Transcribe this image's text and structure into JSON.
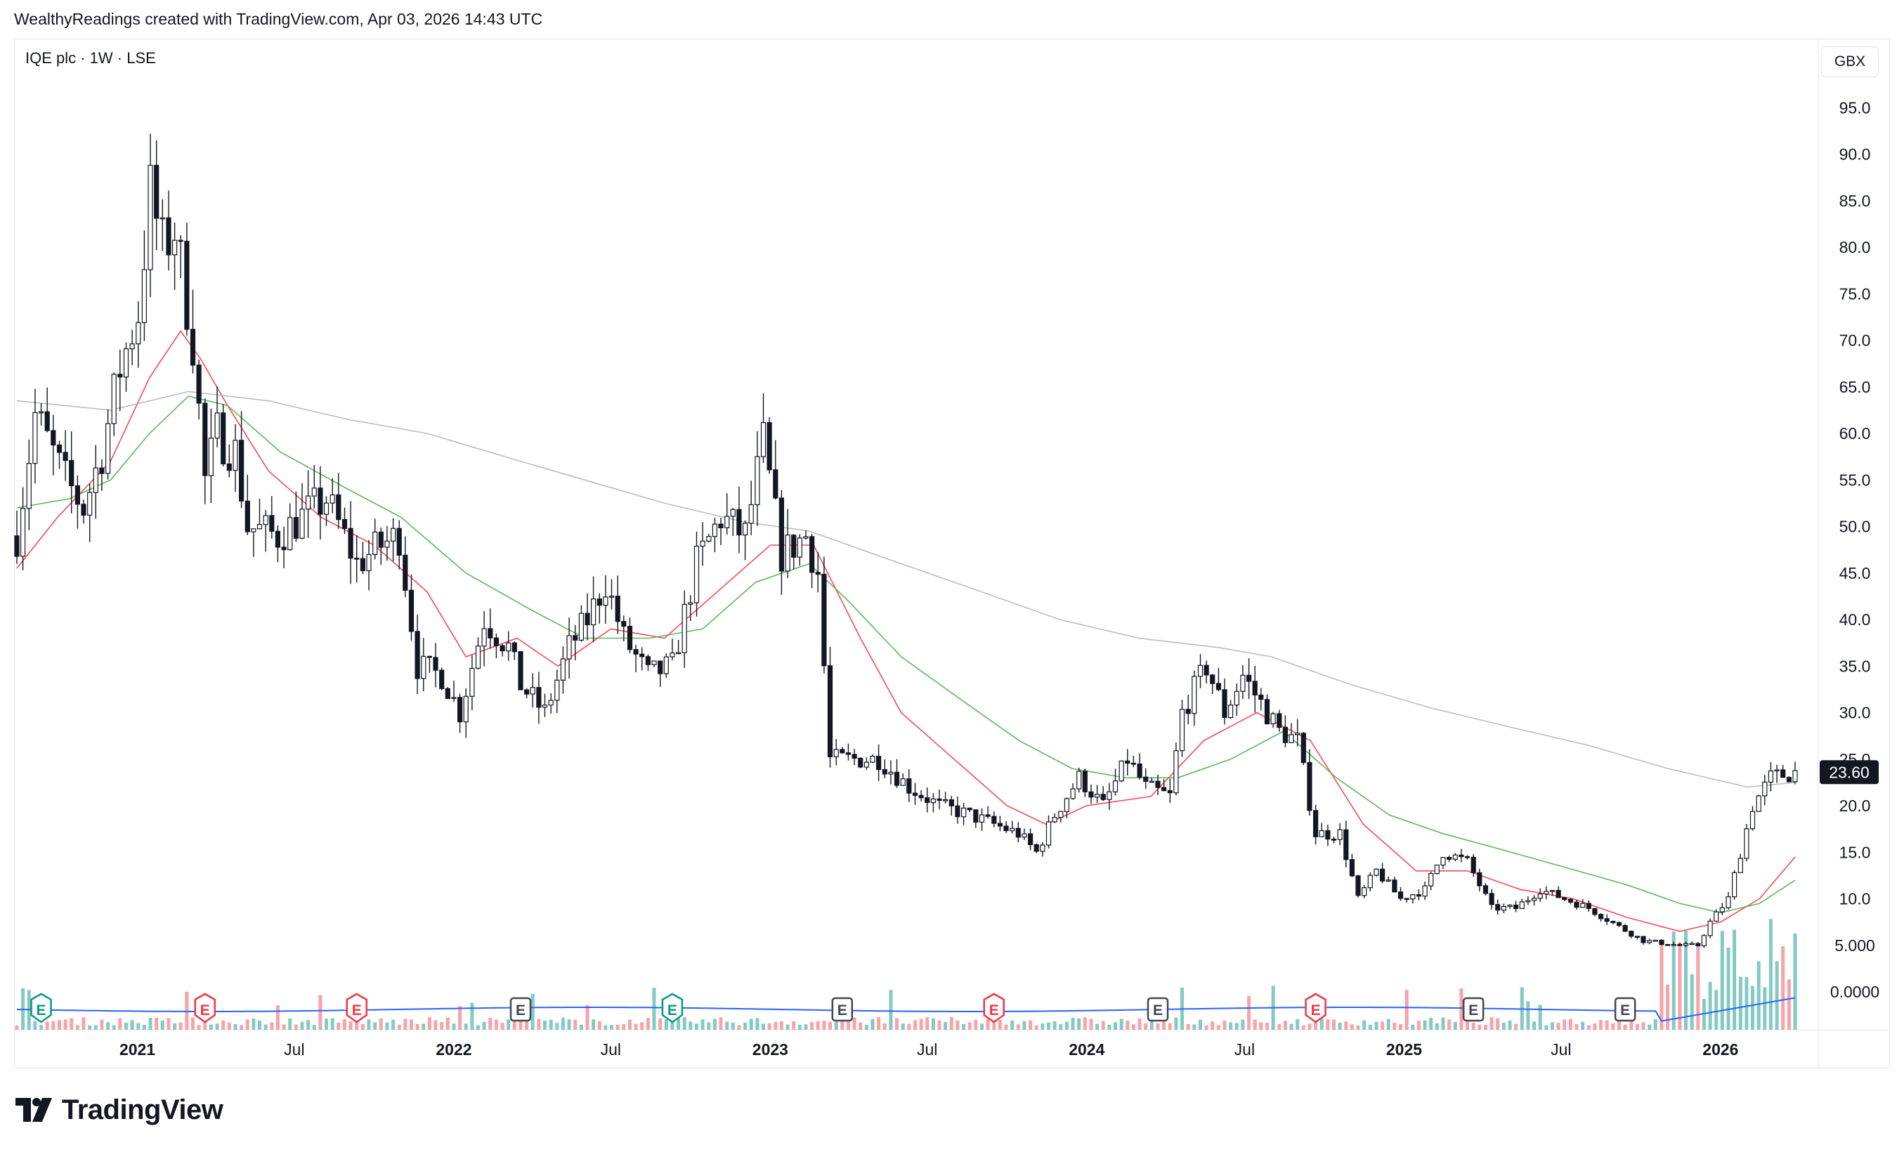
{
  "header": {
    "credit": "WealthyReadings created with TradingView.com, Apr 03, 2026 14:43 UTC"
  },
  "symbol": {
    "title": "IQE plc · 1W · LSE"
  },
  "currency": {
    "label": "GBX"
  },
  "branding": {
    "logo_text": "TradingView"
  },
  "colors": {
    "candle_body": "#131722",
    "ma_fast": "#f23645",
    "ma_mid": "#4caf50",
    "ma_slow": "#b2b5be",
    "volume_up": "#84cac3",
    "volume_down": "#f7a3a8",
    "volume_ma": "#2962ff",
    "earnings_green": "#089981",
    "earnings_red": "#f23645",
    "earnings_gray": "#434651"
  },
  "chart_data": {
    "type": "candlestick",
    "price_axis": {
      "ticks": [
        "95.0",
        "90.0",
        "85.0",
        "80.0",
        "75.0",
        "70.0",
        "65.0",
        "60.0",
        "55.0",
        "50.0",
        "45.0",
        "40.0",
        "35.0",
        "30.0",
        "25.0",
        "20.0",
        "15.0",
        "10.0",
        "5.000",
        "0.0000"
      ],
      "range": [
        0,
        95
      ],
      "unit": "GBX"
    },
    "time_axis": {
      "labels": [
        "2021",
        "Jul",
        "2022",
        "Jul",
        "2023",
        "Jul",
        "2024",
        "Jul",
        "2025",
        "Jul",
        "2026"
      ]
    },
    "last_price_label": "23.60",
    "anchors": [
      {
        "date": "2020-08-15",
        "close": 49
      },
      {
        "date": "2020-09-05",
        "close": 62
      },
      {
        "date": "2020-10-10",
        "close": 55
      },
      {
        "date": "2020-10-31",
        "close": 52
      },
      {
        "date": "2020-11-21",
        "close": 58
      },
      {
        "date": "2020-12-12",
        "close": 67
      },
      {
        "date": "2021-01-02",
        "close": 73
      },
      {
        "date": "2021-01-16",
        "close": 86
      },
      {
        "date": "2021-01-30",
        "close": 80
      },
      {
        "date": "2021-02-13",
        "close": 82
      },
      {
        "date": "2021-03-06",
        "close": 70
      },
      {
        "date": "2021-03-20",
        "close": 55
      },
      {
        "date": "2021-04-03",
        "close": 60
      },
      {
        "date": "2021-04-24",
        "close": 58
      },
      {
        "date": "2021-05-08",
        "close": 50
      },
      {
        "date": "2021-06-12",
        "close": 49
      },
      {
        "date": "2021-07-10",
        "close": 51
      },
      {
        "date": "2021-08-07",
        "close": 53
      },
      {
        "date": "2021-09-11",
        "close": 46
      },
      {
        "date": "2021-10-09",
        "close": 48
      },
      {
        "date": "2021-10-30",
        "close": 49
      },
      {
        "date": "2021-11-20",
        "close": 35
      },
      {
        "date": "2021-12-18",
        "close": 34
      },
      {
        "date": "2022-01-08",
        "close": 30
      },
      {
        "date": "2022-02-05",
        "close": 40
      },
      {
        "date": "2022-03-05",
        "close": 37
      },
      {
        "date": "2022-03-19",
        "close": 33
      },
      {
        "date": "2022-04-16",
        "close": 30
      },
      {
        "date": "2022-05-14",
        "close": 37
      },
      {
        "date": "2022-06-04",
        "close": 40
      },
      {
        "date": "2022-06-25",
        "close": 44
      },
      {
        "date": "2022-07-16",
        "close": 38
      },
      {
        "date": "2022-08-13",
        "close": 34
      },
      {
        "date": "2022-09-10",
        "close": 35
      },
      {
        "date": "2022-10-08",
        "close": 46
      },
      {
        "date": "2022-11-05",
        "close": 51
      },
      {
        "date": "2022-12-03",
        "close": 49
      },
      {
        "date": "2022-12-24",
        "close": 59
      },
      {
        "date": "2023-01-14",
        "close": 47
      },
      {
        "date": "2023-02-11",
        "close": 49
      },
      {
        "date": "2023-02-25",
        "close": 45
      },
      {
        "date": "2023-03-11",
        "close": 25
      },
      {
        "date": "2023-04-08",
        "close": 25
      },
      {
        "date": "2023-05-06",
        "close": 25
      },
      {
        "date": "2023-06-10",
        "close": 22
      },
      {
        "date": "2023-07-15",
        "close": 20
      },
      {
        "date": "2023-08-19",
        "close": 19
      },
      {
        "date": "2023-09-16",
        "close": 18
      },
      {
        "date": "2023-10-14",
        "close": 17
      },
      {
        "date": "2023-11-04",
        "close": 15
      },
      {
        "date": "2023-11-25",
        "close": 19
      },
      {
        "date": "2023-12-23",
        "close": 23
      },
      {
        "date": "2024-01-20",
        "close": 20
      },
      {
        "date": "2024-02-17",
        "close": 25
      },
      {
        "date": "2024-03-09",
        "close": 22
      },
      {
        "date": "2024-04-06",
        "close": 21
      },
      {
        "date": "2024-04-20",
        "close": 30
      },
      {
        "date": "2024-05-18",
        "close": 35
      },
      {
        "date": "2024-06-08",
        "close": 30
      },
      {
        "date": "2024-06-29",
        "close": 34
      },
      {
        "date": "2024-07-20",
        "close": 31
      },
      {
        "date": "2024-08-10",
        "close": 28
      },
      {
        "date": "2024-08-31",
        "close": 27
      },
      {
        "date": "2024-09-21",
        "close": 17
      },
      {
        "date": "2024-10-19",
        "close": 17
      },
      {
        "date": "2024-11-09",
        "close": 10
      },
      {
        "date": "2024-11-30",
        "close": 13
      },
      {
        "date": "2024-12-28",
        "close": 10
      },
      {
        "date": "2025-01-25",
        "close": 11
      },
      {
        "date": "2025-02-15",
        "close": 15
      },
      {
        "date": "2025-03-15",
        "close": 14
      },
      {
        "date": "2025-04-12",
        "close": 9
      },
      {
        "date": "2025-05-10",
        "close": 9
      },
      {
        "date": "2025-06-07",
        "close": 11
      },
      {
        "date": "2025-07-05",
        "close": 10
      },
      {
        "date": "2025-08-02",
        "close": 9
      },
      {
        "date": "2025-09-06",
        "close": 7
      },
      {
        "date": "2025-10-04",
        "close": 5.5
      },
      {
        "date": "2025-11-15",
        "close": 5
      },
      {
        "date": "2025-12-06",
        "close": 5
      },
      {
        "date": "2025-12-20",
        "close": 7.5
      },
      {
        "date": "2026-01-10",
        "close": 10
      },
      {
        "date": "2026-02-07",
        "close": 20
      },
      {
        "date": "2026-02-28",
        "close": 23
      },
      {
        "date": "2026-03-28",
        "close": 23.6
      }
    ],
    "series": [
      {
        "name": "",
        "type": "ma",
        "points": [
          [
            "2020-08-15",
            45.5
          ],
          [
            "2020-10-01",
            51
          ],
          [
            "2020-12-01",
            57
          ],
          [
            "2021-01-15",
            66
          ],
          [
            "2021-02-20",
            71
          ],
          [
            "2021-03-15",
            68
          ],
          [
            "2021-04-15",
            63
          ],
          [
            "2021-06-01",
            56
          ],
          [
            "2021-08-01",
            51
          ],
          [
            "2021-10-01",
            48
          ],
          [
            "2021-12-01",
            43
          ],
          [
            "2022-01-15",
            36
          ],
          [
            "2022-03-15",
            38
          ],
          [
            "2022-05-01",
            35
          ],
          [
            "2022-07-01",
            39
          ],
          [
            "2022-09-01",
            38
          ],
          [
            "2022-11-01",
            43
          ],
          [
            "2023-01-01",
            48
          ],
          [
            "2023-02-20",
            48
          ],
          [
            "2023-04-15",
            38
          ],
          [
            "2023-06-01",
            30
          ],
          [
            "2023-08-01",
            25
          ],
          [
            "2023-10-01",
            20
          ],
          [
            "2023-11-15",
            18
          ],
          [
            "2024-01-01",
            20
          ],
          [
            "2024-03-15",
            21
          ],
          [
            "2024-05-15",
            27
          ],
          [
            "2024-07-15",
            30
          ],
          [
            "2024-09-15",
            27
          ],
          [
            "2024-11-15",
            18
          ],
          [
            "2025-01-15",
            13
          ],
          [
            "2025-03-15",
            13
          ],
          [
            "2025-05-15",
            11
          ],
          [
            "2025-07-15",
            10
          ],
          [
            "2025-09-15",
            8
          ],
          [
            "2025-11-15",
            6.5
          ],
          [
            "2026-01-01",
            7.5
          ],
          [
            "2026-02-15",
            10
          ],
          [
            "2026-03-28",
            14.5
          ]
        ]
      },
      {
        "name": "",
        "type": "ma",
        "points": [
          [
            "2020-08-15",
            52
          ],
          [
            "2020-10-15",
            53
          ],
          [
            "2020-12-01",
            55
          ],
          [
            "2021-01-15",
            60
          ],
          [
            "2021-03-01",
            64
          ],
          [
            "2021-04-15",
            63
          ],
          [
            "2021-06-15",
            58
          ],
          [
            "2021-09-01",
            54
          ],
          [
            "2021-11-01",
            51
          ],
          [
            "2022-01-15",
            45
          ],
          [
            "2022-04-01",
            41
          ],
          [
            "2022-06-01",
            38
          ],
          [
            "2022-08-15",
            38
          ],
          [
            "2022-10-15",
            39
          ],
          [
            "2022-12-15",
            44
          ],
          [
            "2023-02-15",
            46
          ],
          [
            "2023-04-01",
            42
          ],
          [
            "2023-06-01",
            36
          ],
          [
            "2023-08-15",
            31
          ],
          [
            "2023-10-15",
            27
          ],
          [
            "2023-12-15",
            24
          ],
          [
            "2024-02-15",
            23
          ],
          [
            "2024-04-15",
            23
          ],
          [
            "2024-06-15",
            25
          ],
          [
            "2024-08-15",
            28
          ],
          [
            "2024-10-15",
            23
          ],
          [
            "2024-12-15",
            19
          ],
          [
            "2025-02-15",
            17
          ],
          [
            "2025-04-15",
            15.5
          ],
          [
            "2025-07-01",
            13.5
          ],
          [
            "2025-09-15",
            11.5
          ],
          [
            "2025-11-15",
            9.5
          ],
          [
            "2026-01-01",
            8.5
          ],
          [
            "2026-02-15",
            9.5
          ],
          [
            "2026-03-28",
            12
          ]
        ]
      },
      {
        "name": "",
        "type": "ma",
        "points": [
          [
            "2020-08-15",
            63.5
          ],
          [
            "2020-12-01",
            62.5
          ],
          [
            "2021-03-01",
            64.5
          ],
          [
            "2021-06-01",
            63.5
          ],
          [
            "2021-09-01",
            61.5
          ],
          [
            "2021-12-01",
            60
          ],
          [
            "2022-03-01",
            57.5
          ],
          [
            "2022-06-01",
            55
          ],
          [
            "2022-09-01",
            52.5
          ],
          [
            "2022-12-01",
            50.5
          ],
          [
            "2023-02-15",
            49.5
          ],
          [
            "2023-06-01",
            46
          ],
          [
            "2023-09-01",
            43
          ],
          [
            "2023-12-01",
            40
          ],
          [
            "2024-03-01",
            38
          ],
          [
            "2024-06-01",
            37
          ],
          [
            "2024-08-01",
            36
          ],
          [
            "2024-11-01",
            33
          ],
          [
            "2025-02-01",
            30.5
          ],
          [
            "2025-05-01",
            28.5
          ],
          [
            "2025-08-01",
            26.5
          ],
          [
            "2025-11-01",
            24
          ],
          [
            "2026-02-01",
            22
          ],
          [
            "2026-03-28",
            22.5
          ]
        ]
      }
    ],
    "earnings_events": [
      {
        "date": "2020-09-12",
        "kind": "green",
        "label": "E"
      },
      {
        "date": "2021-03-20",
        "kind": "red",
        "label": "E"
      },
      {
        "date": "2021-09-11",
        "kind": "red",
        "label": "E"
      },
      {
        "date": "2022-03-19",
        "kind": "gray",
        "label": "E"
      },
      {
        "date": "2022-09-10",
        "kind": "green",
        "label": "E"
      },
      {
        "date": "2023-03-25",
        "kind": "gray",
        "label": "E"
      },
      {
        "date": "2023-09-16",
        "kind": "red",
        "label": "E"
      },
      {
        "date": "2024-03-23",
        "kind": "gray",
        "label": "E"
      },
      {
        "date": "2024-09-21",
        "kind": "red",
        "label": "E"
      },
      {
        "date": "2025-03-22",
        "kind": "gray",
        "label": "E"
      },
      {
        "date": "2025-09-13",
        "kind": "gray",
        "label": "E"
      }
    ]
  }
}
